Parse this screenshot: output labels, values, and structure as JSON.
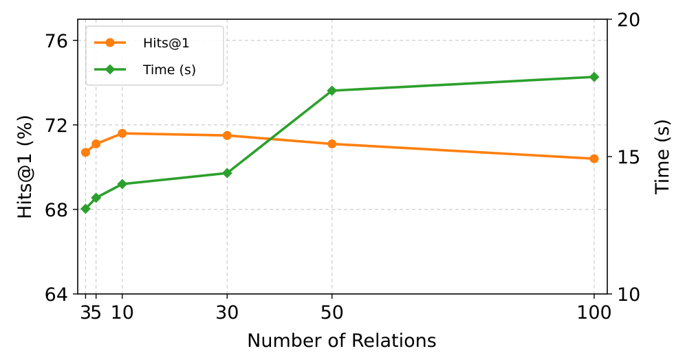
{
  "chart_data": {
    "type": "line",
    "xlabel": "Number of Relations",
    "ylabel": "Hits@1 (%)",
    "y2label": "Time (s)",
    "x": [
      3,
      5,
      10,
      30,
      50,
      100
    ],
    "x_tick_labels": [
      "3",
      "5",
      "10",
      "30",
      "50",
      "100"
    ],
    "xlim": [
      1.5,
      102.5
    ],
    "ylim": [
      64,
      77
    ],
    "y_ticks": [
      64,
      68,
      72,
      76
    ],
    "y2lim": [
      10,
      20
    ],
    "y2_ticks": [
      10,
      15,
      20
    ],
    "grid": true,
    "legend_position": "top-left",
    "series": [
      {
        "name": "Hits@1",
        "axis": "left",
        "color": "#ff7f0e",
        "marker": "circle",
        "values": [
          70.7,
          71.1,
          71.6,
          71.5,
          71.1,
          70.4
        ]
      },
      {
        "name": "Time (s)",
        "axis": "right",
        "color": "#2ca02c",
        "marker": "diamond",
        "values": [
          13.1,
          13.5,
          14.0,
          14.4,
          17.4,
          17.9
        ]
      }
    ]
  }
}
